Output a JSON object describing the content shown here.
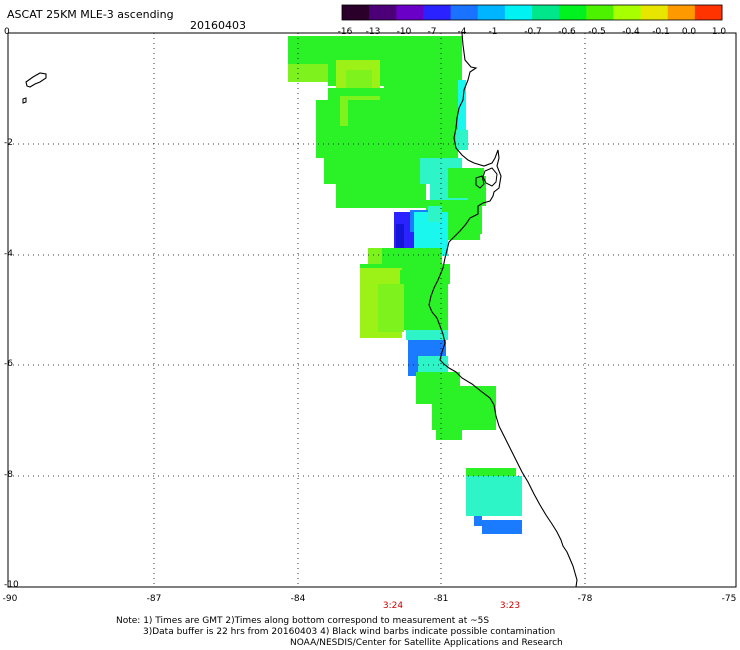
{
  "header": {
    "title": "ASCAT 25KM MLE-3 ascending",
    "date": "20160403"
  },
  "colorbar": {
    "labels": [
      "-16",
      "-13",
      "-10",
      "-7",
      "-4",
      "-1",
      "-0.7",
      "-0.6",
      "-0.5",
      "-0.4",
      "-0.1",
      "0.0",
      "1.0"
    ],
    "colors": [
      "#2a002a",
      "#4c0077",
      "#6a00c8",
      "#2a22ff",
      "#1a73ff",
      "#00b5ff",
      "#00f2f2",
      "#00e68a",
      "#00f21f",
      "#4df200",
      "#a8ff00",
      "#e6e600",
      "#ff9900",
      "#ff3300"
    ]
  },
  "map": {
    "lat_ticks": [
      "0",
      "-2",
      "-4",
      "-6",
      "-8",
      "-10"
    ],
    "lon_ticks": [
      "-90",
      "-87",
      "-84",
      "-81",
      "-78",
      "-75"
    ],
    "times": [
      "3:24",
      "3:23"
    ],
    "data_colors": {
      "green": "#2af226",
      "lime": "#7df21c",
      "yellowgreen": "#9cf216",
      "aqua": "#2ef5c8",
      "cyan": "#19f7ee",
      "blue": "#1a7bff",
      "deepblue": "#2a22ff",
      "navy": "#1515d8"
    }
  },
  "notes": {
    "line1": "Note: 1) Times are GMT 2)Times along bottom correspond to measurement at ~5S",
    "line2": "3)Data buffer is 22 hrs from 20160403 4) Black wind barbs indicate possible contamination",
    "line3": "NOAA/NESDIS/Center for Satellite Applications and Research"
  }
}
